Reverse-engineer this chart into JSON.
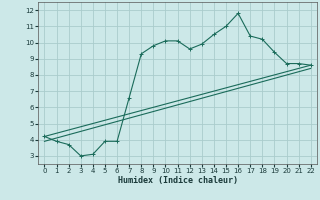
{
  "xlabel": "Humidex (Indice chaleur)",
  "bg_color": "#cce8e8",
  "grid_color": "#aacccc",
  "line_color": "#1a6b5a",
  "xlim": [
    -0.5,
    22.5
  ],
  "ylim": [
    2.5,
    12.5
  ],
  "yticks": [
    3,
    4,
    5,
    6,
    7,
    8,
    9,
    10,
    11,
    12
  ],
  "xticks": [
    0,
    1,
    2,
    3,
    4,
    5,
    6,
    7,
    8,
    9,
    10,
    11,
    12,
    13,
    14,
    15,
    16,
    17,
    18,
    19,
    20,
    21,
    22
  ],
  "series1_x": [
    0,
    1,
    2,
    3,
    4,
    5,
    6,
    7,
    8,
    9,
    10,
    11,
    12,
    13,
    14,
    15,
    16,
    17,
    18,
    19,
    20,
    21,
    22
  ],
  "series1_y": [
    4.2,
    3.9,
    3.7,
    3.0,
    3.1,
    3.9,
    3.9,
    6.6,
    9.3,
    9.8,
    10.1,
    10.1,
    9.6,
    9.9,
    10.5,
    11.0,
    11.8,
    10.4,
    10.2,
    9.4,
    8.7,
    8.7,
    8.6
  ],
  "series2_x": [
    0,
    22
  ],
  "series2_y": [
    4.2,
    8.6
  ],
  "series3_x": [
    0,
    22
  ],
  "series3_y": [
    3.9,
    8.4
  ]
}
